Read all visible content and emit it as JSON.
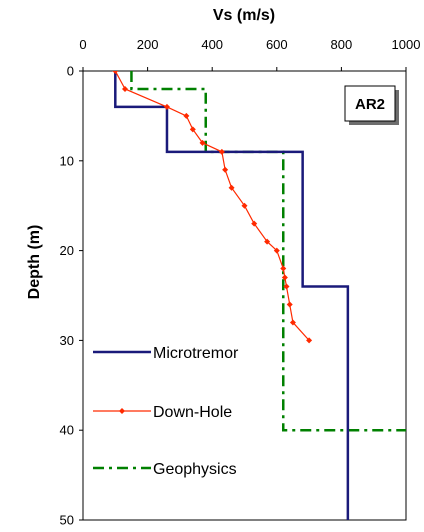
{
  "chart_data": {
    "type": "line",
    "badge": "AR2",
    "xlabel": "Vs (m/s)",
    "ylabel": "Depth (m)",
    "xlim": [
      0,
      1000
    ],
    "ylim": [
      0,
      50
    ],
    "x_ticks": [
      "0",
      "200",
      "400",
      "600",
      "800",
      "1000"
    ],
    "y_ticks": [
      "0",
      "10",
      "20",
      "30",
      "40",
      "50"
    ],
    "x_axis_position": "top",
    "y_inverted": true,
    "grid": false,
    "legend_placement": "lower-left",
    "series": [
      {
        "name": "Microtremor",
        "color": "#1a1a7a",
        "style": "solid-step",
        "points": [
          [
            100,
            0
          ],
          [
            100,
            4
          ],
          [
            260,
            4
          ],
          [
            260,
            9
          ],
          [
            680,
            9
          ],
          [
            680,
            24
          ],
          [
            820,
            24
          ],
          [
            820,
            50
          ]
        ]
      },
      {
        "name": "Down-Hole",
        "color": "#ff2a00",
        "style": "line-diamond-markers",
        "points": [
          [
            100,
            0
          ],
          [
            130,
            2
          ],
          [
            260,
            4
          ],
          [
            320,
            5
          ],
          [
            340,
            6.5
          ],
          [
            370,
            8
          ],
          [
            430,
            9
          ],
          [
            440,
            11
          ],
          [
            460,
            13
          ],
          [
            500,
            15
          ],
          [
            530,
            17
          ],
          [
            570,
            19
          ],
          [
            600,
            20
          ],
          [
            620,
            22
          ],
          [
            625,
            23
          ],
          [
            630,
            24
          ],
          [
            640,
            26
          ],
          [
            650,
            28
          ],
          [
            700,
            30
          ]
        ]
      },
      {
        "name": "Geophysics",
        "color": "#008000",
        "style": "dash-dot-step",
        "points": [
          [
            150,
            0
          ],
          [
            150,
            2
          ],
          [
            380,
            2
          ],
          [
            380,
            9
          ],
          [
            620,
            9
          ],
          [
            620,
            40
          ],
          [
            1000,
            40
          ]
        ]
      }
    ]
  }
}
